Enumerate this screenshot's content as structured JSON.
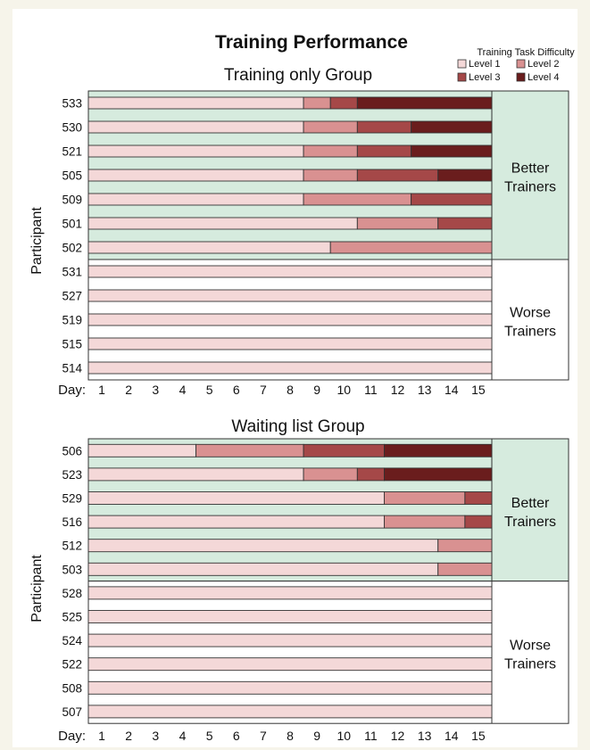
{
  "title": "Training Performance",
  "legend": {
    "title": "Training Task Difficulty",
    "items": [
      {
        "label": "Level 1",
        "color": "#f4d8d8"
      },
      {
        "label": "Level 2",
        "color": "#d99191"
      },
      {
        "label": "Level 3",
        "color": "#a54848"
      },
      {
        "label": "Level 4",
        "color": "#6a1d1d"
      }
    ]
  },
  "colors": {
    "level_1": "#f4d8d8",
    "level_2": "#d99191",
    "level_3": "#a54848",
    "level_4": "#6a1d1d",
    "better_bg": "#d6ebde",
    "worse_bg": "#ffffff",
    "border": "#333333",
    "page_bg": "#f6f4ea"
  },
  "chart_data": [
    {
      "type": "bar",
      "subtitle": "Training only Group",
      "ylabel": "Participant",
      "xlabel": "Day:",
      "x_ticks": [
        1,
        2,
        3,
        4,
        5,
        6,
        7,
        8,
        9,
        10,
        11,
        12,
        13,
        14,
        15
      ],
      "xlim": [
        1,
        15
      ],
      "orientation": "horizontal-stacked",
      "group_labels": {
        "better": "Better\nTrainers",
        "worse": "Worse\nTrainers"
      },
      "participants": [
        {
          "id": "533",
          "group": "better",
          "level_start_days": [
            1,
            9,
            10,
            11
          ]
        },
        {
          "id": "530",
          "group": "better",
          "level_start_days": [
            1,
            9,
            11,
            13
          ]
        },
        {
          "id": "521",
          "group": "better",
          "level_start_days": [
            1,
            9,
            11,
            13
          ]
        },
        {
          "id": "505",
          "group": "better",
          "level_start_days": [
            1,
            9,
            11,
            14
          ]
        },
        {
          "id": "509",
          "group": "better",
          "level_start_days": [
            1,
            9,
            13
          ]
        },
        {
          "id": "501",
          "group": "better",
          "level_start_days": [
            1,
            11,
            14
          ]
        },
        {
          "id": "502",
          "group": "better",
          "level_start_days": [
            1,
            10
          ]
        },
        {
          "id": "531",
          "group": "worse",
          "level_start_days": [
            1
          ]
        },
        {
          "id": "527",
          "group": "worse",
          "level_start_days": [
            1
          ]
        },
        {
          "id": "519",
          "group": "worse",
          "level_start_days": [
            1
          ]
        },
        {
          "id": "515",
          "group": "worse",
          "level_start_days": [
            1
          ]
        },
        {
          "id": "514",
          "group": "worse",
          "level_start_days": [
            1
          ]
        }
      ]
    },
    {
      "type": "bar",
      "subtitle": "Waiting list Group",
      "ylabel": "Participant",
      "xlabel": "Day:",
      "x_ticks": [
        1,
        2,
        3,
        4,
        5,
        6,
        7,
        8,
        9,
        10,
        11,
        12,
        13,
        14,
        15
      ],
      "xlim": [
        1,
        15
      ],
      "orientation": "horizontal-stacked",
      "group_labels": {
        "better": "Better\nTrainers",
        "worse": "Worse\nTrainers"
      },
      "participants": [
        {
          "id": "506",
          "group": "better",
          "level_start_days": [
            1,
            5,
            9,
            12
          ]
        },
        {
          "id": "523",
          "group": "better",
          "level_start_days": [
            1,
            9,
            11,
            12
          ]
        },
        {
          "id": "529",
          "group": "better",
          "level_start_days": [
            1,
            12,
            15
          ]
        },
        {
          "id": "516",
          "group": "better",
          "level_start_days": [
            1,
            12,
            15
          ]
        },
        {
          "id": "512",
          "group": "better",
          "level_start_days": [
            1,
            14
          ]
        },
        {
          "id": "503",
          "group": "better",
          "level_start_days": [
            1,
            14
          ]
        },
        {
          "id": "528",
          "group": "worse",
          "level_start_days": [
            1
          ]
        },
        {
          "id": "525",
          "group": "worse",
          "level_start_days": [
            1
          ]
        },
        {
          "id": "524",
          "group": "worse",
          "level_start_days": [
            1
          ]
        },
        {
          "id": "522",
          "group": "worse",
          "level_start_days": [
            1
          ]
        },
        {
          "id": "508",
          "group": "worse",
          "level_start_days": [
            1
          ]
        },
        {
          "id": "507",
          "group": "worse",
          "level_start_days": [
            1
          ]
        }
      ]
    }
  ]
}
